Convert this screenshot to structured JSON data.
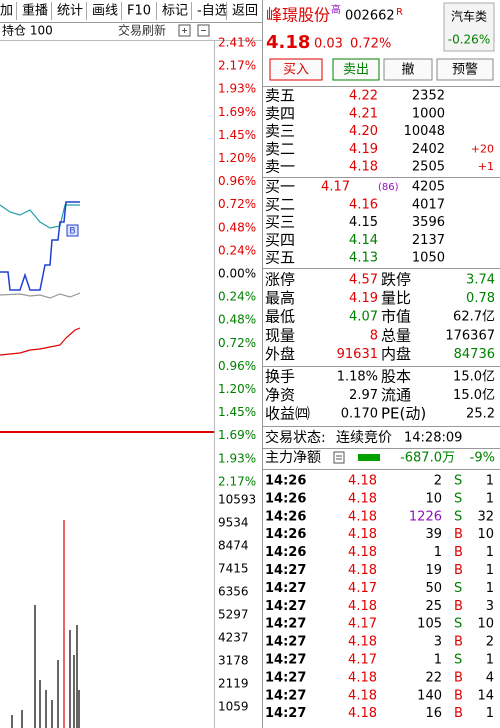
{
  "toolbar": [
    "加",
    "重播",
    "统计",
    "画线",
    "F10",
    "标记",
    "-自选",
    "返回"
  ],
  "subbar": {
    "position": "持仓 100",
    "refresh": "交易刷新"
  },
  "price_axis": [
    "2.41%",
    "2.17%",
    "1.93%",
    "1.69%",
    "1.45%",
    "1.20%",
    "0.96%",
    "0.72%",
    "0.48%",
    "0.24%",
    "0.00%",
    "0.24%",
    "0.48%",
    "0.72%",
    "0.96%",
    "1.20%",
    "1.45%",
    "1.69%",
    "1.93%",
    "2.17%"
  ],
  "volume_axis": [
    "10593",
    "9534",
    "8474",
    "7415",
    "6356",
    "5297",
    "4237",
    "3178",
    "2119",
    "1059"
  ],
  "quote": {
    "name": "峰璟股份",
    "tag": "高",
    "code": "002662",
    "flag": "R",
    "sector": "汽车类",
    "sector_change": "-0.26%",
    "price": "4.18",
    "change": "0.03",
    "change_pct": "0.72%"
  },
  "buttons": [
    "买入",
    "卖出",
    "撤",
    "预警"
  ],
  "sell": [
    {
      "label": "卖五",
      "price": "4.22",
      "volume": "2352"
    },
    {
      "label": "卖四",
      "price": "4.21",
      "volume": "1000"
    },
    {
      "label": "卖三",
      "price": "4.20",
      "volume": "10048"
    },
    {
      "label": "卖二",
      "price": "4.19",
      "volume": "2402",
      "delta": "+20"
    },
    {
      "label": "卖一",
      "price": "4.18",
      "volume": "2505",
      "delta": "+1"
    }
  ],
  "buy": [
    {
      "label": "买一",
      "price": "4.17",
      "orders": "(86)",
      "volume": "4205"
    },
    {
      "label": "买二",
      "price": "4.16",
      "volume": "4017"
    },
    {
      "label": "买三",
      "price": "4.15",
      "volume": "3596"
    },
    {
      "label": "买四",
      "price": "4.14",
      "volume": "2137"
    },
    {
      "label": "买五",
      "price": "4.13",
      "volume": "1050"
    }
  ],
  "stats": [
    [
      "涨停",
      "4.57",
      "跌停",
      "3.74"
    ],
    [
      "最高",
      "4.19",
      "量比",
      "0.78"
    ],
    [
      "最低",
      "4.07",
      "市值",
      "62.7亿"
    ],
    [
      "现量",
      "8",
      "总量",
      "176367"
    ],
    [
      "外盘",
      "91631",
      "内盘",
      "84736"
    ]
  ],
  "fundamentals": [
    [
      "换手",
      "1.18%",
      "股本",
      "15.0亿"
    ],
    [
      "净资",
      "2.97",
      "流通",
      "15.0亿"
    ],
    [
      "收益㈣",
      "0.170",
      "PE(动)",
      "25.2"
    ]
  ],
  "status": {
    "label": "交易状态:",
    "value": "连续竞价",
    "time": "14:28:09"
  },
  "main_flow": {
    "label": "主力净额",
    "amount": "-687.0万",
    "pct": "-9%"
  },
  "ticks": [
    [
      "14:26",
      "4.18",
      "2",
      "S",
      "1"
    ],
    [
      "14:26",
      "4.18",
      "10",
      "S",
      "1"
    ],
    [
      "14:26",
      "4.18",
      "1226",
      "S",
      "32"
    ],
    [
      "14:26",
      "4.18",
      "39",
      "B",
      "10"
    ],
    [
      "14:26",
      "4.18",
      "1",
      "B",
      "1"
    ],
    [
      "14:27",
      "4.18",
      "19",
      "B",
      "1"
    ],
    [
      "14:27",
      "4.17",
      "50",
      "S",
      "1"
    ],
    [
      "14:27",
      "4.18",
      "25",
      "B",
      "3"
    ],
    [
      "14:27",
      "4.17",
      "105",
      "S",
      "10"
    ],
    [
      "14:27",
      "4.18",
      "3",
      "B",
      "2"
    ],
    [
      "14:27",
      "4.17",
      "1",
      "S",
      "1"
    ],
    [
      "14:27",
      "4.18",
      "22",
      "B",
      "4"
    ],
    [
      "14:27",
      "4.18",
      "140",
      "B",
      "14"
    ],
    [
      "14:27",
      "4.18",
      "16",
      "B",
      "1"
    ]
  ]
}
